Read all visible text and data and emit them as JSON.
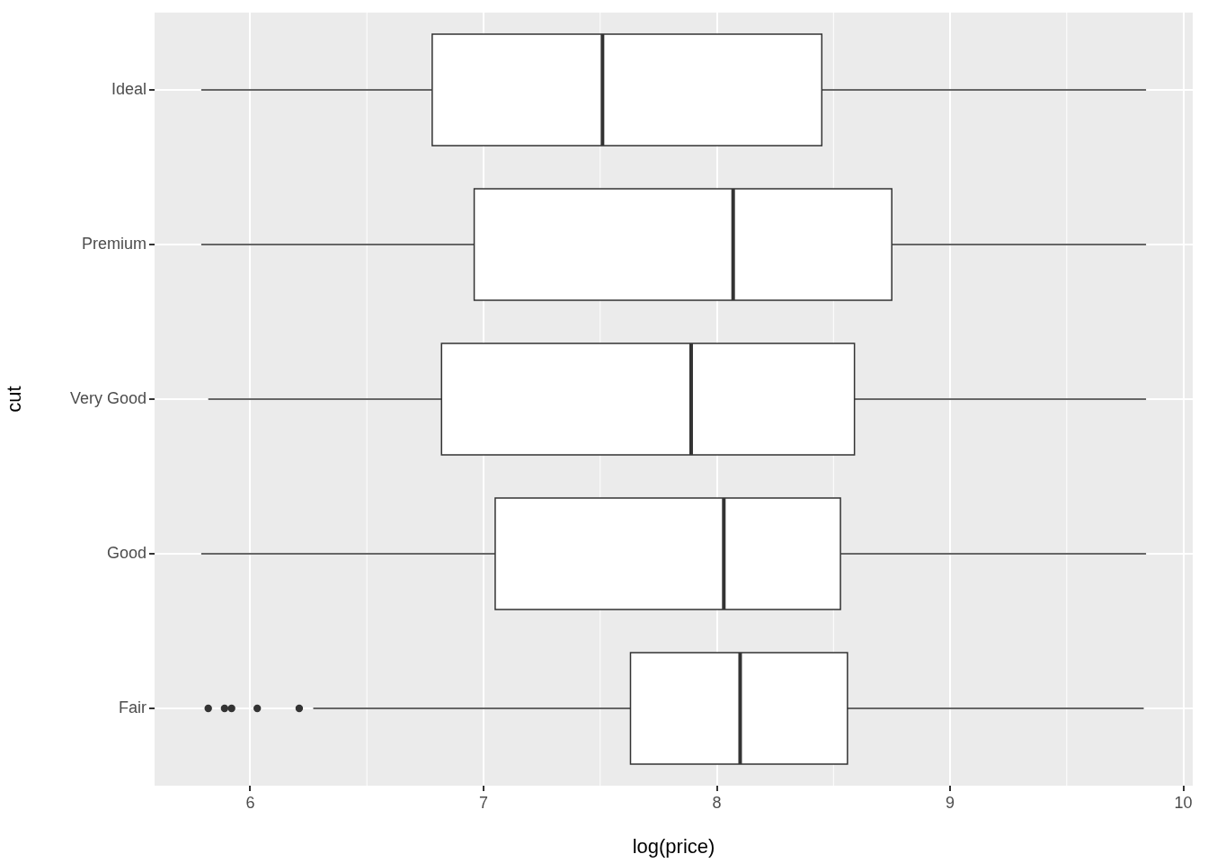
{
  "chart_data": {
    "type": "box",
    "orientation": "horizontal",
    "xlabel": "log(price)",
    "ylabel": "cut",
    "categories": [
      "Ideal",
      "Premium",
      "Very Good",
      "Good",
      "Fair"
    ],
    "boxes": [
      {
        "low": 5.79,
        "q1": 6.78,
        "median": 7.51,
        "q3": 8.45,
        "high": 9.84
      },
      {
        "low": 5.79,
        "q1": 6.96,
        "median": 8.07,
        "q3": 8.75,
        "high": 9.84
      },
      {
        "low": 5.82,
        "q1": 6.82,
        "median": 7.89,
        "q3": 8.59,
        "high": 9.84
      },
      {
        "low": 5.79,
        "q1": 7.05,
        "median": 8.03,
        "q3": 8.53,
        "high": 9.84
      },
      {
        "low": 6.27,
        "q1": 7.63,
        "median": 8.1,
        "q3": 8.56,
        "high": 9.83,
        "outliers": [
          5.82,
          5.89,
          5.92,
          6.03,
          6.21
        ]
      }
    ],
    "xlim": [
      5.59,
      10.04
    ],
    "xticks": [
      6,
      7,
      8,
      9,
      10
    ],
    "grid": true
  }
}
